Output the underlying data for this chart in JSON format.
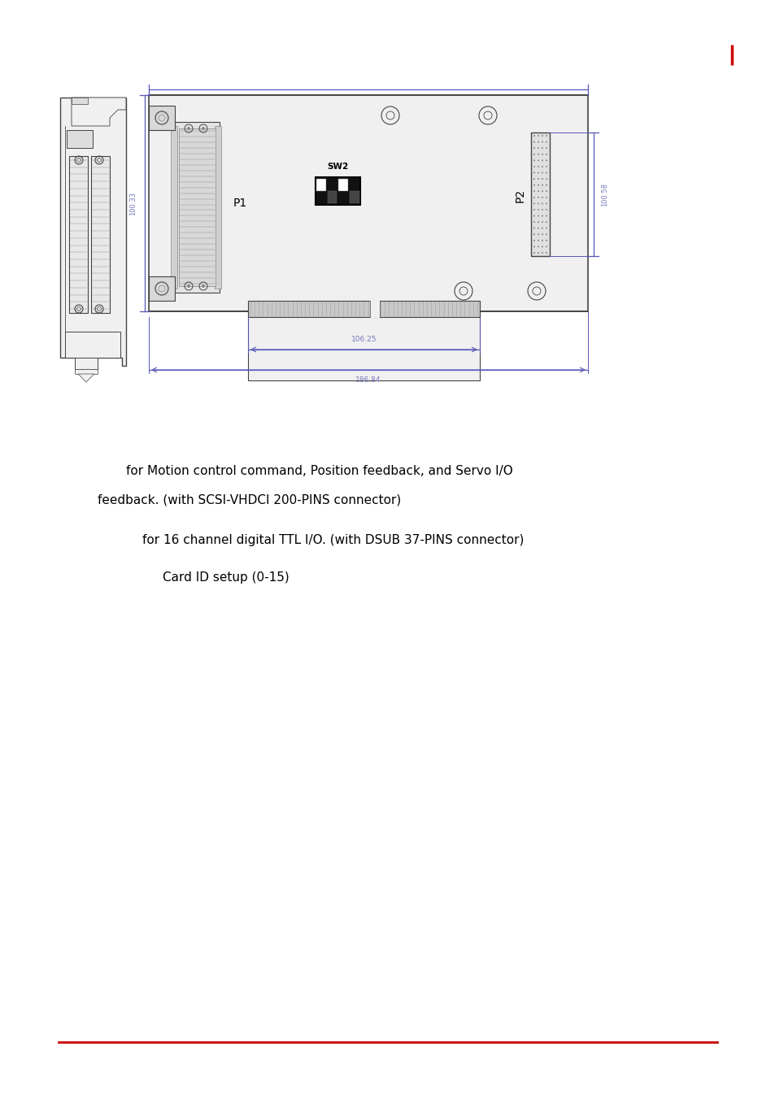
{
  "bg_color": "#ffffff",
  "page_width": 9.54,
  "page_height": 13.52,
  "blue_dim_color": "#5555bb",
  "dim_text_color": "#7777bb",
  "dark_color": "#444444",
  "mid_gray": "#888888",
  "light_gray": "#dddddd",
  "board_fill": "#f0f0f0",
  "text_color": "#000000",
  "label_P1": "P1",
  "label_P2": "P2",
  "label_SW2": "SW2",
  "dim_100_33": "100.33",
  "dim_100_58": "100.58",
  "dim_106_25": "106.25",
  "dim_186_84": "186.84",
  "text1_line1": "for Motion control command, Position feedback, and Servo I/O",
  "text1_line2": "feedback. (with SCSI-VHDCI 200-PINS connector)",
  "text2": "for 16 channel digital TTL I/O. (with DSUB 37-PINS connector)",
  "text3": "Card ID setup (0-15)",
  "footer_line_color": "#cc0000",
  "red_mark_color": "#cc0000"
}
